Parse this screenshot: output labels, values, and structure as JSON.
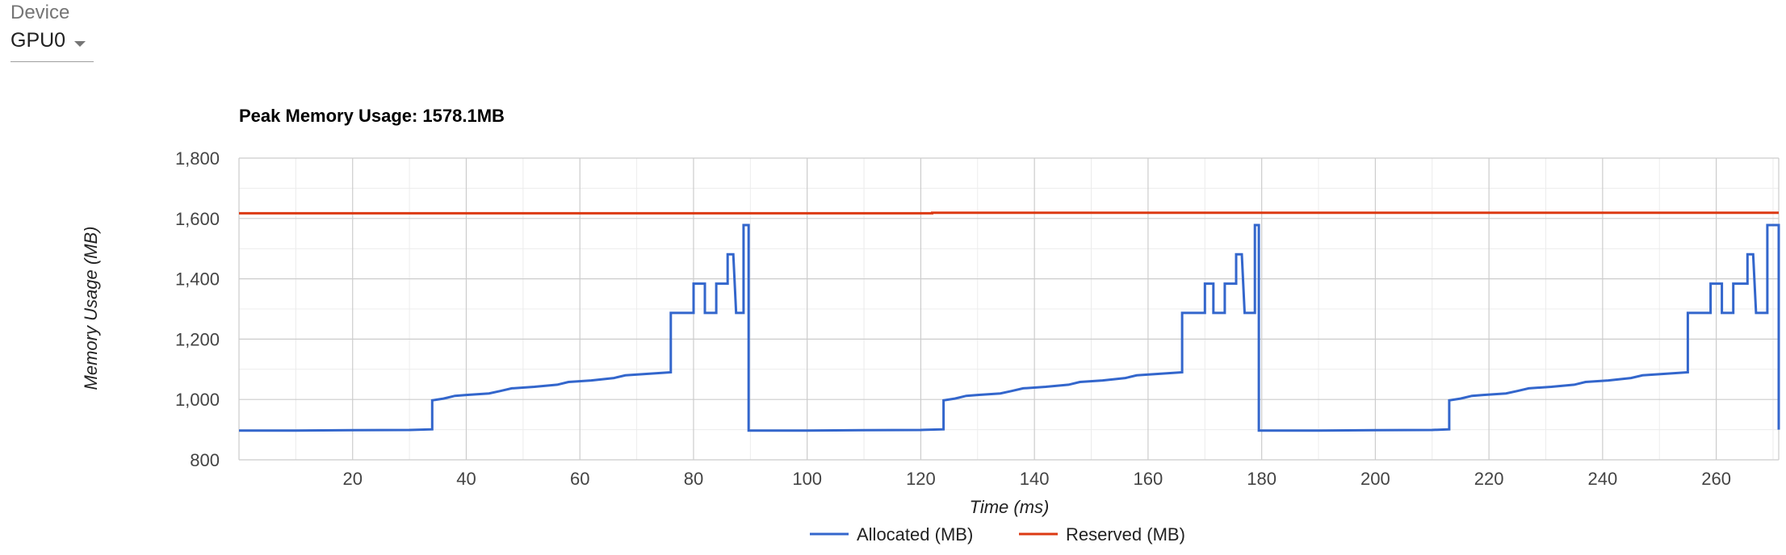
{
  "device": {
    "label": "Device",
    "selected": "GPU0"
  },
  "icons": {
    "dropdown": "caret-down-icon"
  },
  "chart_data": {
    "type": "line",
    "title": "Peak Memory Usage: 1578.1MB",
    "xlabel": "Time (ms)",
    "ylabel": "Memory Usage (MB)",
    "xlim": [
      0,
      271
    ],
    "ylim": [
      800,
      1800
    ],
    "xticks": [
      20,
      40,
      60,
      80,
      100,
      120,
      140,
      160,
      180,
      200,
      220,
      240,
      260
    ],
    "yticks": [
      800,
      1000,
      1200,
      1400,
      1600,
      1800
    ],
    "ytick_labels": [
      "800",
      "1,000",
      "1,200",
      "1,400",
      "1,600",
      "1,800"
    ],
    "grid": true,
    "legend_position": "bottom",
    "series": [
      {
        "name": "Allocated (MB)",
        "color": "#3366cc",
        "step": true,
        "x": [
          0,
          10,
          20,
          30,
          34,
          34,
          36,
          38,
          40,
          44,
          46,
          48,
          52,
          56,
          58,
          62,
          66,
          68,
          72,
          76,
          76,
          80,
          80,
          82,
          82,
          84,
          84,
          86,
          86,
          87,
          87.5,
          88.8,
          88.8,
          89.7,
          89.7,
          100,
          110,
          120,
          124,
          124,
          126,
          128,
          130,
          134,
          136,
          138,
          142,
          146,
          148,
          152,
          156,
          158,
          162,
          166,
          166,
          170,
          170,
          171.5,
          171.5,
          173.5,
          173.5,
          175.5,
          175.5,
          176.5,
          177,
          178.8,
          178.8,
          179.5,
          179.5,
          190,
          200,
          210,
          213,
          213,
          215,
          217,
          219,
          223,
          225,
          227,
          231,
          235,
          237,
          241,
          245,
          247,
          251,
          255,
          255,
          259,
          259,
          261,
          261,
          263,
          263,
          265.5,
          265.5,
          266.5,
          267,
          269,
          269,
          271,
          271
        ],
        "values": [
          897,
          897,
          898,
          899,
          901,
          997,
          1003,
          1012,
          1015,
          1020,
          1028,
          1037,
          1042,
          1049,
          1058,
          1063,
          1071,
          1080,
          1085,
          1090,
          1287,
          1287,
          1384,
          1384,
          1287,
          1287,
          1384,
          1384,
          1481,
          1481,
          1287,
          1287,
          1578,
          1578,
          897,
          897,
          898,
          899,
          901,
          997,
          1003,
          1012,
          1015,
          1020,
          1028,
          1037,
          1042,
          1049,
          1058,
          1063,
          1071,
          1080,
          1085,
          1090,
          1287,
          1287,
          1384,
          1384,
          1287,
          1287,
          1384,
          1384,
          1481,
          1481,
          1287,
          1287,
          1578,
          1578,
          897,
          897,
          898,
          899,
          901,
          997,
          1003,
          1012,
          1015,
          1020,
          1028,
          1037,
          1042,
          1049,
          1058,
          1063,
          1071,
          1080,
          1085,
          1090,
          1287,
          1287,
          1384,
          1384,
          1287,
          1287,
          1384,
          1384,
          1481,
          1481,
          1287,
          1287,
          1578,
          1578,
          900
        ]
      },
      {
        "name": "Reserved (MB)",
        "color": "#dc3912",
        "step": true,
        "x": [
          0,
          122,
          122,
          271
        ],
        "values": [
          1617,
          1617,
          1619,
          1619
        ]
      }
    ]
  }
}
